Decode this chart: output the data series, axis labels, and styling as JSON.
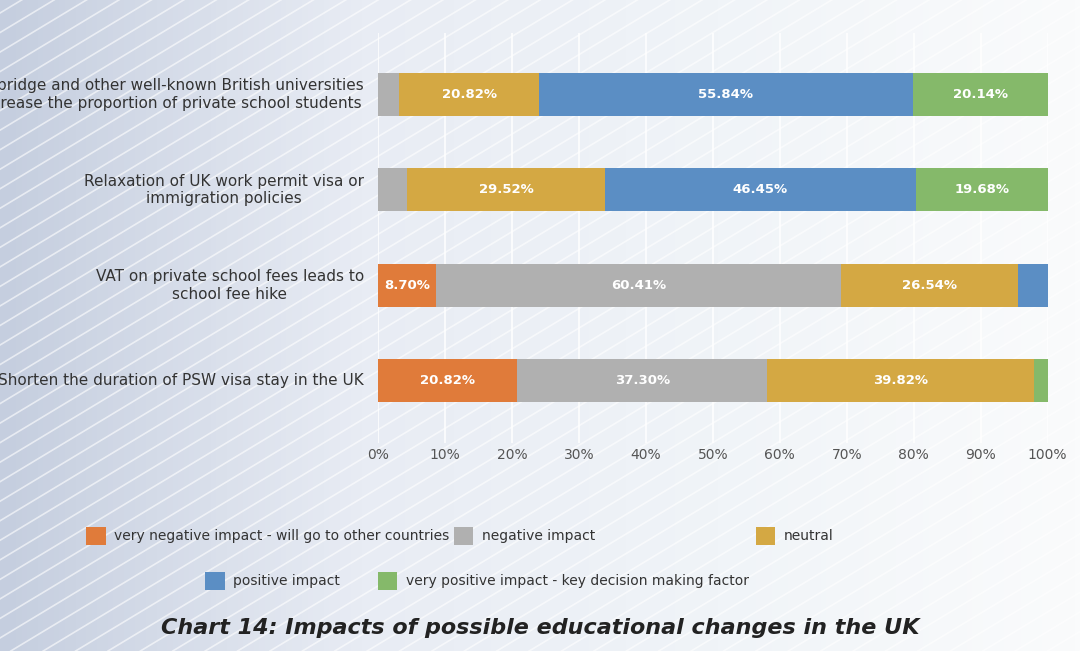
{
  "categories": [
    "Shorten the duration of PSW visa stay in the UK",
    "VAT on private school fees leads to\nschool fee hike",
    "Relaxation of UK work permit visa or\nimmigration policies",
    "Oxbridge and other well-known British universities\nincrease the proportion of private school students"
  ],
  "segments": {
    "very_negative": [
      20.82,
      8.7,
      0.0,
      0.0
    ],
    "negative": [
      37.3,
      60.41,
      4.35,
      3.2
    ],
    "neutral": [
      39.82,
      26.54,
      29.52,
      20.82
    ],
    "positive": [
      0.0,
      4.35,
      46.45,
      55.84
    ],
    "very_positive": [
      2.06,
      0.0,
      19.68,
      20.14
    ]
  },
  "labels": {
    "very_negative": [
      "20.82%",
      "8.70%",
      "",
      ""
    ],
    "negative": [
      "37.30%",
      "60.41%",
      "",
      ""
    ],
    "neutral": [
      "39.82%",
      "26.54%",
      "29.52%",
      "20.82%"
    ],
    "positive": [
      "",
      "",
      "46.45%",
      "55.84%"
    ],
    "very_positive": [
      "",
      "",
      "19.68%",
      "20.14%"
    ]
  },
  "colors": {
    "very_negative": "#E07B3A",
    "negative": "#B0B0B0",
    "neutral": "#D4A843",
    "positive": "#5B8EC4",
    "very_positive": "#85B96A"
  },
  "legend_labels": {
    "very_negative": "very negative impact - will go to other countries",
    "negative": "negative impact",
    "neutral": "neutral",
    "positive": "positive impact",
    "very_positive": "very positive impact - key decision making factor"
  },
  "title": "Chart 14: Impacts of possible educational changes in the UK",
  "bg_top_color": "#D0D8E8",
  "bg_bottom_color": "#F5F5FA",
  "bar_height": 0.45,
  "xlim": [
    0,
    100
  ],
  "xticks": [
    0,
    10,
    20,
    30,
    40,
    50,
    60,
    70,
    80,
    90,
    100
  ],
  "xtick_labels": [
    "0%",
    "10%",
    "20%",
    "30%",
    "40%",
    "50%",
    "60%",
    "70%",
    "80%",
    "90%",
    "100%"
  ],
  "text_color_on_bar": "#FFFFFF",
  "label_fontsize": 9.5,
  "category_fontsize": 11,
  "title_fontsize": 16
}
